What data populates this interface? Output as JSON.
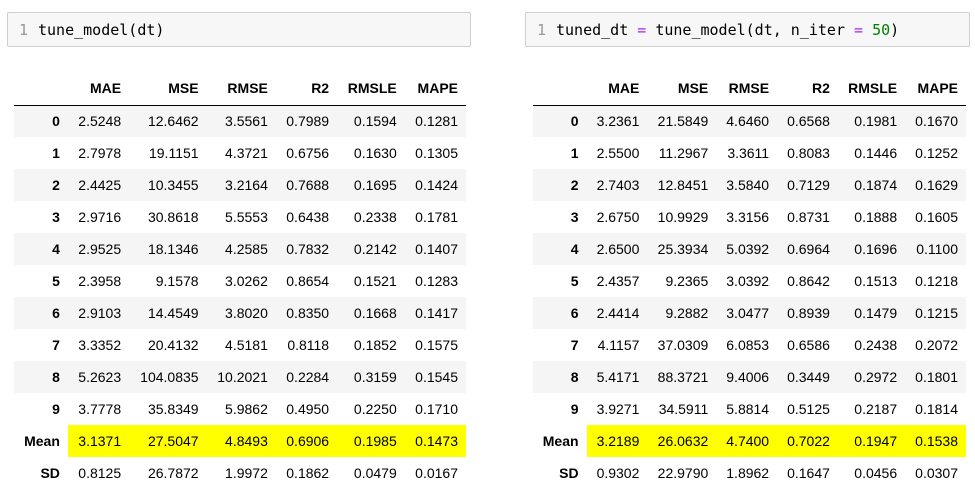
{
  "left": {
    "line_number": "1",
    "code": {
      "call": "tune_model(dt)"
    },
    "columns": [
      "",
      "MAE",
      "MSE",
      "RMSE",
      "R2",
      "RMSLE",
      "MAPE"
    ],
    "rows": [
      {
        "index": "0",
        "values": [
          "2.5248",
          "12.6462",
          "3.5561",
          "0.7989",
          "0.1594",
          "0.1281"
        ]
      },
      {
        "index": "1",
        "values": [
          "2.7978",
          "19.1151",
          "4.3721",
          "0.6756",
          "0.1630",
          "0.1305"
        ]
      },
      {
        "index": "2",
        "values": [
          "2.4425",
          "10.3455",
          "3.2164",
          "0.7688",
          "0.1695",
          "0.1424"
        ]
      },
      {
        "index": "3",
        "values": [
          "2.9716",
          "30.8618",
          "5.5553",
          "0.6438",
          "0.2338",
          "0.1781"
        ]
      },
      {
        "index": "4",
        "values": [
          "2.9525",
          "18.1346",
          "4.2585",
          "0.7832",
          "0.2142",
          "0.1407"
        ]
      },
      {
        "index": "5",
        "values": [
          "2.3958",
          "9.1578",
          "3.0262",
          "0.8654",
          "0.1521",
          "0.1283"
        ]
      },
      {
        "index": "6",
        "values": [
          "2.9103",
          "14.4549",
          "3.8020",
          "0.8350",
          "0.1668",
          "0.1417"
        ]
      },
      {
        "index": "7",
        "values": [
          "3.3352",
          "20.4132",
          "4.5181",
          "0.8118",
          "0.1852",
          "0.1575"
        ]
      },
      {
        "index": "8",
        "values": [
          "5.2623",
          "104.0835",
          "10.2021",
          "0.2284",
          "0.3159",
          "0.1545"
        ]
      },
      {
        "index": "9",
        "values": [
          "3.7778",
          "35.8349",
          "5.9862",
          "0.4950",
          "0.2250",
          "0.1710"
        ]
      },
      {
        "index": "Mean",
        "values": [
          "3.1371",
          "27.5047",
          "4.8493",
          "0.6906",
          "0.1985",
          "0.1473"
        ]
      },
      {
        "index": "SD",
        "values": [
          "0.8125",
          "26.7872",
          "1.9972",
          "0.1862",
          "0.0479",
          "0.0167"
        ]
      }
    ]
  },
  "right": {
    "line_number": "1",
    "code": {
      "var": "tuned_dt ",
      "eq": "=",
      "call": " tune_model(dt, n_iter ",
      "eq2": "=",
      "space": " ",
      "num": "50",
      "close": ")"
    },
    "columns": [
      "",
      "MAE",
      "MSE",
      "RMSE",
      "R2",
      "RMSLE",
      "MAPE"
    ],
    "rows": [
      {
        "index": "0",
        "values": [
          "3.2361",
          "21.5849",
          "4.6460",
          "0.6568",
          "0.1981",
          "0.1670"
        ]
      },
      {
        "index": "1",
        "values": [
          "2.5500",
          "11.2967",
          "3.3611",
          "0.8083",
          "0.1446",
          "0.1252"
        ]
      },
      {
        "index": "2",
        "values": [
          "2.7403",
          "12.8451",
          "3.5840",
          "0.7129",
          "0.1874",
          "0.1629"
        ]
      },
      {
        "index": "3",
        "values": [
          "2.6750",
          "10.9929",
          "3.3156",
          "0.8731",
          "0.1888",
          "0.1605"
        ]
      },
      {
        "index": "4",
        "values": [
          "2.6500",
          "25.3934",
          "5.0392",
          "0.6964",
          "0.1696",
          "0.1100"
        ]
      },
      {
        "index": "5",
        "values": [
          "2.4357",
          "9.2365",
          "3.0392",
          "0.8642",
          "0.1513",
          "0.1218"
        ]
      },
      {
        "index": "6",
        "values": [
          "2.4414",
          "9.2882",
          "3.0477",
          "0.8939",
          "0.1479",
          "0.1215"
        ]
      },
      {
        "index": "7",
        "values": [
          "4.1157",
          "37.0309",
          "6.0853",
          "0.6586",
          "0.2438",
          "0.2072"
        ]
      },
      {
        "index": "8",
        "values": [
          "5.4171",
          "88.3721",
          "9.4006",
          "0.3449",
          "0.2972",
          "0.1801"
        ]
      },
      {
        "index": "9",
        "values": [
          "3.9271",
          "34.5911",
          "5.8814",
          "0.5125",
          "0.2187",
          "0.1814"
        ]
      },
      {
        "index": "Mean",
        "values": [
          "3.2189",
          "26.0632",
          "4.7400",
          "0.7022",
          "0.1947",
          "0.1538"
        ]
      },
      {
        "index": "SD",
        "values": [
          "0.9302",
          "22.9790",
          "1.8962",
          "0.1647",
          "0.0456",
          "0.0307"
        ]
      }
    ]
  },
  "colors": {
    "highlight": "#ffff00",
    "operator": "#aa22ff",
    "number": "#008000",
    "stripe": "#f5f5f5",
    "cell_bg": "#f7f7f7"
  }
}
